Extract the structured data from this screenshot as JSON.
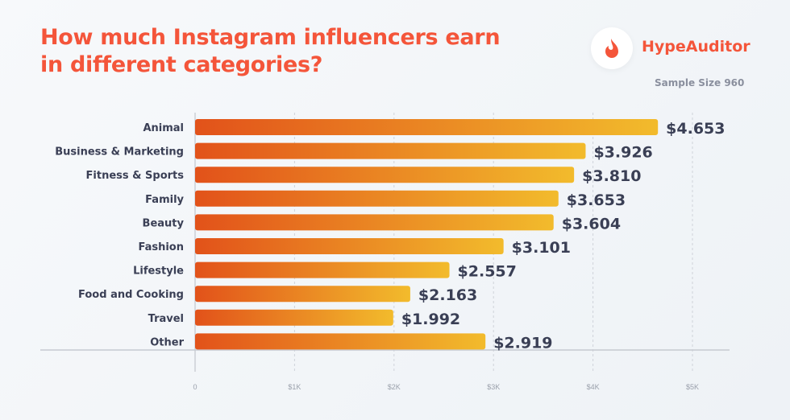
{
  "header": {
    "title_line1": "How much Instagram influencers earn",
    "title_line2": "in different categories?",
    "brand": "HypeAuditor",
    "sample": "Sample Size 960",
    "brand_icon": "flame-icon"
  },
  "colors": {
    "accent": "#f4553a",
    "bar_start": "#e2521a",
    "bar_end": "#f2bb2c",
    "value_text": "#3a3f55"
  },
  "chart_data": {
    "type": "bar",
    "orientation": "horizontal",
    "title": "How much Instagram influencers earn in different categories?",
    "categories": [
      "Animal",
      "Business & Marketing",
      "Fitness & Sports",
      "Family",
      "Beauty",
      "Fashion",
      "Lifestyle",
      "Food and Cooking",
      "Travel",
      "Other"
    ],
    "values": [
      4653,
      3926,
      3810,
      3653,
      3604,
      3101,
      2557,
      2163,
      1992,
      2919
    ],
    "value_labels": [
      "$4.653",
      "$3.926",
      "$3.810",
      "$3.653",
      "$3.604",
      "$3.101",
      "$2.557",
      "$2.163",
      "$1.992",
      "$2.919"
    ],
    "xlim": [
      0,
      5000
    ],
    "xticks": [
      0,
      1000,
      2000,
      3000,
      4000,
      5000
    ],
    "xtick_labels": [
      "0",
      "$1K",
      "$2K",
      "$3K",
      "$4K",
      "$5K"
    ],
    "grid": true,
    "legend": "none"
  }
}
